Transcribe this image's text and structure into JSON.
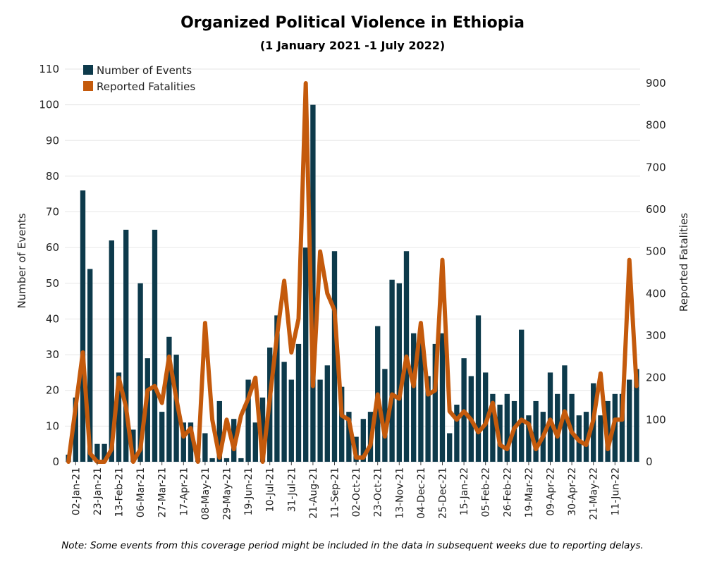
{
  "title": "Organized Political Violence in Ethiopia",
  "subtitle": "(1 January 2021 -1 July 2022)",
  "note": "Note: Some events from this coverage period might be included in the data in subsequent weeks due to reporting delays.",
  "colors": {
    "events": "#0d3a4b",
    "fatalities": "#c45a0c",
    "grid": "#e6e6e6"
  },
  "chart_data": {
    "type": "bar",
    "title": "Organized Political Violence in Ethiopia",
    "subtitle": "(1 January 2021 -1 July 2022)",
    "ylabel": "Number of Events",
    "y2label": "Reported Fatalities",
    "ylim": [
      0,
      110
    ],
    "y2lim": [
      0,
      900
    ],
    "yticks": [
      0,
      10,
      20,
      30,
      40,
      50,
      60,
      70,
      80,
      90,
      100,
      110
    ],
    "y2ticks": [
      0,
      100,
      200,
      300,
      400,
      500,
      600,
      700,
      800,
      900
    ],
    "legend_position": "top-left",
    "x_tick_labels": [
      "02-Jan-21",
      "23-Jan-21",
      "13-Feb-21",
      "06-Mar-21",
      "27-Mar-21",
      "17-Apr-21",
      "08-May-21",
      "29-May-21",
      "19-Jun-21",
      "10-Jul-21",
      "31-Jul-21",
      "21-Aug-21",
      "11-Sep-21",
      "02-Oct-21",
      "23-Oct-21",
      "13-Nov-21",
      "04-Dec-21",
      "25-Dec-21",
      "15-Jan-22",
      "05-Feb-22",
      "26-Feb-22",
      "19-Mar-22",
      "09-Apr-22",
      "30-Apr-22",
      "21-May-22",
      "11-Jun-22"
    ],
    "x_tick_every": 3,
    "series": [
      {
        "name": "Number of Events",
        "type": "bar",
        "axis": "left",
        "values": [
          2,
          18,
          76,
          54,
          5,
          5,
          62,
          25,
          65,
          9,
          50,
          29,
          65,
          14,
          35,
          30,
          11,
          11,
          1,
          8,
          1,
          17,
          1,
          12,
          1,
          23,
          11,
          18,
          32,
          41,
          28,
          23,
          33,
          60,
          100,
          23,
          27,
          59,
          21,
          14,
          7,
          12,
          14,
          38,
          26,
          51,
          50,
          59,
          36,
          34,
          24,
          33,
          36,
          8,
          16,
          29,
          24,
          41,
          25,
          19,
          16,
          19,
          17,
          37,
          13,
          17,
          14,
          25,
          19,
          27,
          19,
          13,
          14,
          22,
          13,
          17,
          19,
          19,
          23,
          26
        ]
      },
      {
        "name": "Reported Fatalities",
        "type": "line",
        "axis": "right",
        "values": [
          0,
          130,
          260,
          20,
          0,
          0,
          30,
          200,
          130,
          0,
          30,
          170,
          180,
          140,
          250,
          150,
          60,
          80,
          0,
          330,
          100,
          10,
          100,
          30,
          110,
          150,
          200,
          0,
          150,
          300,
          430,
          260,
          340,
          900,
          180,
          500,
          400,
          360,
          110,
          100,
          10,
          10,
          40,
          160,
          60,
          160,
          150,
          250,
          180,
          330,
          160,
          170,
          480,
          120,
          100,
          120,
          100,
          70,
          90,
          140,
          40,
          30,
          80,
          100,
          90,
          30,
          60,
          100,
          60,
          120,
          70,
          50,
          40,
          100,
          210,
          30,
          100,
          100,
          480,
          180
        ]
      }
    ]
  }
}
